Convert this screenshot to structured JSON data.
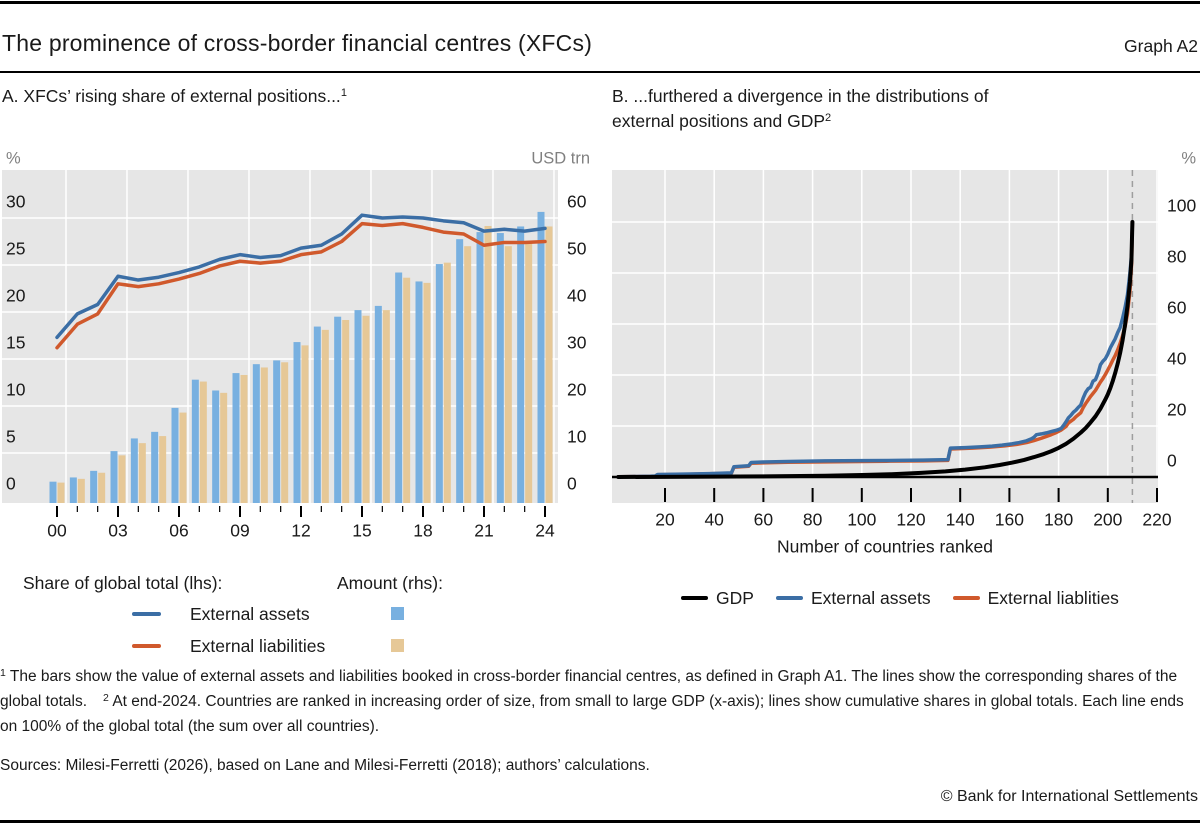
{
  "header": {
    "title": "The prominence of cross-border financial centres (XFCs)",
    "graph_label": "Graph A2"
  },
  "panel_a": {
    "title_main": "A. XFCs’ rising share of external positions...",
    "title_sup": "1",
    "legend": {
      "group_lhs": "Share of global total (lhs):",
      "group_rhs": "Amount (rhs):",
      "items": [
        {
          "label": "External assets"
        },
        {
          "label": "External liabilities"
        }
      ]
    }
  },
  "panel_b": {
    "title_line1": "B. ...furthered a divergence in the distributions of",
    "title_line2": "external positions and GDP",
    "title_sup": "2",
    "legend": [
      {
        "label": "GDP",
        "color": "#000000"
      },
      {
        "label": "External assets",
        "color": "#3b6ea5"
      },
      {
        "label": "External liablities",
        "color": "#d0592c"
      }
    ]
  },
  "footnotes": [
    {
      "sup": "1",
      "text": "The bars show the value of external assets and liabilities booked in cross-border financial centres, as defined in Graph A1. The lines show the corresponding shares of the global totals."
    },
    {
      "sup": "2",
      "text": "At end-2024. Countries are ranked in increasing order of size, from small to large GDP (x-axis); lines show cumulative shares in global totals. Each line ends on 100% of the global total (the sum over all countries)."
    }
  ],
  "sources": "Sources: Milesi-Ferretti (2026), based on Lane and Milesi-Ferretti (2018); authors’ calculations.",
  "copyright": "© Bank for International Settlements",
  "colors": {
    "line_assets": "#3b6ea5",
    "line_liabilities": "#d0592c",
    "bar_assets": "#78b0e0",
    "bar_liabilities": "#e6c897",
    "gdp_line": "#000000",
    "plot_bg": "#e6e6e6",
    "gridline": "#ffffff",
    "dashed_line": "#9e9e9e",
    "unit_text": "#808080",
    "tick_text": "#1a1a1a"
  },
  "chart_data": [
    {
      "type": "bar+line",
      "title": "A. XFCs' rising share of external positions...",
      "unit_left": "%",
      "unit_right": "USD trn",
      "years": [
        2000,
        2001,
        2002,
        2003,
        2004,
        2005,
        2006,
        2007,
        2008,
        2009,
        2010,
        2011,
        2012,
        2013,
        2014,
        2015,
        2016,
        2017,
        2018,
        2019,
        2020,
        2021,
        2022,
        2023,
        2024
      ],
      "x_tick_labels": [
        "00",
        "03",
        "06",
        "09",
        "12",
        "15",
        "18",
        "21",
        "24"
      ],
      "lhs_ticks": [
        0,
        5,
        10,
        15,
        20,
        25,
        30
      ],
      "rhs_ticks": [
        0,
        10,
        20,
        30,
        40,
        50,
        60
      ],
      "ylim_left": [
        0,
        35
      ],
      "ylim_right": [
        0,
        70
      ],
      "series_lines": [
        {
          "name": "External assets share of global total (lhs, %)",
          "color": "#3b6ea5",
          "values": [
            17.3,
            19.8,
            20.8,
            23.8,
            23.4,
            23.7,
            24.2,
            24.8,
            25.6,
            26.1,
            25.8,
            26.0,
            26.8,
            27.1,
            28.3,
            30.3,
            30.0,
            30.1,
            30.0,
            29.7,
            29.5,
            28.6,
            28.8,
            28.6,
            28.9
          ]
        },
        {
          "name": "External liabilities share of global total (lhs, %)",
          "color": "#d0592c",
          "values": [
            16.2,
            18.7,
            19.8,
            23.0,
            22.7,
            23.0,
            23.5,
            24.1,
            24.9,
            25.4,
            25.2,
            25.4,
            26.1,
            26.4,
            27.5,
            29.4,
            29.2,
            29.4,
            29.0,
            28.5,
            28.3,
            27.1,
            27.4,
            27.4,
            27.5
          ]
        }
      ],
      "series_bars": [
        {
          "name": "External assets amount (rhs, USD trn)",
          "color": "#78b0e0",
          "values": [
            3.9,
            4.8,
            6.2,
            10.4,
            13.1,
            14.5,
            19.6,
            25.6,
            23.3,
            27.0,
            28.9,
            29.7,
            33.6,
            36.9,
            39.0,
            40.4,
            41.3,
            48.4,
            46.5,
            50.2,
            55.5,
            57.0,
            56.8,
            58.2,
            61.3
          ]
        },
        {
          "name": "External liabilities amount (rhs, USD trn)",
          "color": "#e6c897",
          "values": [
            3.7,
            4.5,
            5.8,
            9.5,
            12.1,
            13.6,
            18.6,
            25.2,
            22.8,
            26.6,
            28.2,
            29.3,
            32.9,
            36.2,
            38.3,
            39.2,
            40.4,
            47.3,
            46.2,
            50.5,
            54.0,
            58.3,
            54.0,
            54.8,
            58.2
          ]
        }
      ]
    },
    {
      "type": "line",
      "title": "B. ...furthered a divergence in the distributions of external positions and GDP",
      "unit_right": "%",
      "xlabel": "Number of countries ranked",
      "x_ticks": [
        20,
        40,
        60,
        80,
        100,
        120,
        140,
        160,
        180,
        200,
        220
      ],
      "y_ticks": [
        0,
        20,
        40,
        60,
        80,
        100
      ],
      "xlim": [
        1,
        232
      ],
      "ylim": [
        0,
        120
      ],
      "dashed_x": 210,
      "series": [
        {
          "name": "External assets",
          "color": "#3b6ea5",
          "points": [
            [
              1,
              0.1
            ],
            [
              8,
              0.2
            ],
            [
              14,
              0.3
            ],
            [
              16,
              0.4
            ],
            [
              17,
              1.0
            ],
            [
              24,
              1.1
            ],
            [
              30,
              1.2
            ],
            [
              38,
              1.3
            ],
            [
              44,
              1.5
            ],
            [
              47,
              1.6
            ],
            [
              48,
              4.0
            ],
            [
              51,
              4.2
            ],
            [
              54,
              4.4
            ],
            [
              55,
              5.7
            ],
            [
              60,
              5.9
            ],
            [
              70,
              6.1
            ],
            [
              85,
              6.3
            ],
            [
              100,
              6.4
            ],
            [
              115,
              6.5
            ],
            [
              125,
              6.6
            ],
            [
              135,
              6.8
            ],
            [
              136,
              11.3
            ],
            [
              142,
              11.5
            ],
            [
              148,
              11.8
            ],
            [
              153,
              12.1
            ],
            [
              157,
              12.5
            ],
            [
              161,
              13.0
            ],
            [
              164,
              13.5
            ],
            [
              167,
              14.2
            ],
            [
              169,
              15.0
            ],
            [
              170,
              15.6
            ],
            [
              171,
              16.6
            ],
            [
              173,
              16.9
            ],
            [
              175,
              17.3
            ],
            [
              177,
              17.8
            ],
            [
              179,
              18.3
            ],
            [
              181,
              19.0
            ],
            [
              182,
              20.2
            ],
            [
              183,
              21.6
            ],
            [
              184,
              23.2
            ],
            [
              185,
              24.2
            ],
            [
              186,
              25.4
            ],
            [
              187,
              26.2
            ],
            [
              188,
              27.3
            ],
            [
              189,
              28.2
            ],
            [
              190,
              31.0
            ],
            [
              191,
              33.2
            ],
            [
              192,
              34.6
            ],
            [
              193,
              35.2
            ],
            [
              194,
              37.6
            ],
            [
              195,
              38.2
            ],
            [
              196,
              40.6
            ],
            [
              197,
              44.0
            ],
            [
              198,
              45.4
            ],
            [
              199,
              46.4
            ],
            [
              200,
              48.2
            ],
            [
              201,
              50.6
            ],
            [
              202,
              52.4
            ],
            [
              203,
              54.2
            ],
            [
              204,
              56.6
            ],
            [
              205,
              58.6
            ],
            [
              206,
              62.2
            ],
            [
              207,
              66.4
            ],
            [
              208,
              71.5
            ],
            [
              209,
              80.0
            ],
            [
              209.7,
              88.0
            ],
            [
              210,
              100
            ]
          ]
        },
        {
          "name": "External liablities",
          "color": "#d0592c",
          "points": [
            [
              1,
              0.1
            ],
            [
              16,
              0.3
            ],
            [
              17,
              0.9
            ],
            [
              30,
              1.1
            ],
            [
              44,
              1.4
            ],
            [
              47,
              1.5
            ],
            [
              48,
              3.8
            ],
            [
              54,
              4.2
            ],
            [
              55,
              5.4
            ],
            [
              70,
              5.8
            ],
            [
              90,
              6.0
            ],
            [
              110,
              6.2
            ],
            [
              125,
              6.3
            ],
            [
              135,
              6.5
            ],
            [
              136,
              11.0
            ],
            [
              145,
              11.3
            ],
            [
              152,
              11.7
            ],
            [
              158,
              12.2
            ],
            [
              163,
              12.8
            ],
            [
              167,
              13.5
            ],
            [
              170,
              14.3
            ],
            [
              173,
              15.2
            ],
            [
              175,
              15.9
            ],
            [
              177,
              16.6
            ],
            [
              179,
              17.4
            ],
            [
              181,
              18.4
            ],
            [
              183,
              19.8
            ],
            [
              184,
              21.2
            ],
            [
              186,
              22.6
            ],
            [
              187,
              23.6
            ],
            [
              189,
              25.2
            ],
            [
              190,
              27.2
            ],
            [
              191,
              28.8
            ],
            [
              192,
              30.2
            ],
            [
              193,
              31.6
            ],
            [
              194,
              32.8
            ],
            [
              195,
              34.0
            ],
            [
              196,
              35.6
            ],
            [
              197,
              37.2
            ],
            [
              198,
              38.6
            ],
            [
              199,
              40.2
            ],
            [
              200,
              42.0
            ],
            [
              201,
              43.8
            ],
            [
              202,
              45.8
            ],
            [
              203,
              47.6
            ],
            [
              204,
              49.8
            ],
            [
              205,
              52.4
            ],
            [
              206,
              55.4
            ],
            [
              207,
              58.8
            ],
            [
              208,
              64.0
            ],
            [
              209,
              73.0
            ],
            [
              209.7,
              84.0
            ],
            [
              210,
              100
            ]
          ]
        },
        {
          "name": "GDP",
          "color": "#000000",
          "points": [
            [
              1,
              0
            ],
            [
              30,
              0.1
            ],
            [
              60,
              0.25
            ],
            [
              85,
              0.5
            ],
            [
              100,
              0.8
            ],
            [
              112,
              1.1
            ],
            [
              124,
              1.6
            ],
            [
              134,
              2.2
            ],
            [
              142,
              2.9
            ],
            [
              150,
              3.8
            ],
            [
              156,
              4.7
            ],
            [
              161,
              5.6
            ],
            [
              166,
              6.7
            ],
            [
              170,
              7.8
            ],
            [
              174,
              9.0
            ],
            [
              177,
              10.1
            ],
            [
              180,
              11.4
            ],
            [
              183,
              13.0
            ],
            [
              186,
              15.0
            ],
            [
              189,
              17.4
            ],
            [
              191,
              19.2
            ],
            [
              193,
              21.4
            ],
            [
              195,
              23.8
            ],
            [
              197,
              26.8
            ],
            [
              199,
              30.4
            ],
            [
              200,
              32.4
            ],
            [
              201,
              34.8
            ],
            [
              202,
              37.6
            ],
            [
              203,
              40.8
            ],
            [
              204,
              44.4
            ],
            [
              205,
              48.6
            ],
            [
              206,
              53.6
            ],
            [
              207,
              59.6
            ],
            [
              208,
              67.0
            ],
            [
              209,
              76.5
            ],
            [
              209.6,
              85.0
            ],
            [
              210,
              100
            ]
          ]
        }
      ]
    }
  ]
}
